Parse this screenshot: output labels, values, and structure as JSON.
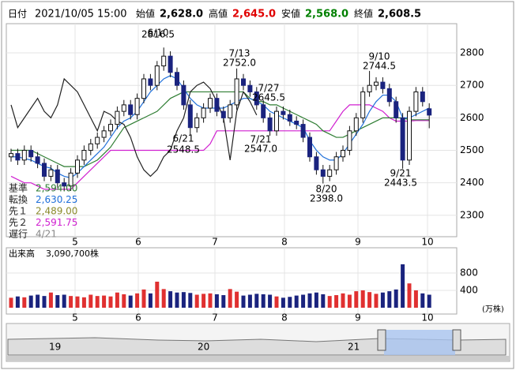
{
  "header": {
    "date_label": "日付",
    "date": "2021/10/05 15:00",
    "open_label": "始値",
    "open": "2,628.0",
    "high_label": "高値",
    "high": "2,645.0",
    "low_label": "安値",
    "low": "2,568.0",
    "close_label": "終値",
    "close": "2,608.5"
  },
  "chart_data": {
    "type": "candlestick",
    "ylim": [
      2234,
      2890
    ],
    "yticks": [
      2300,
      2400,
      2500,
      2600,
      2700,
      2800
    ],
    "month_labels": [
      "5",
      "6",
      "7",
      "8",
      "9",
      "10"
    ],
    "candles": [
      [
        2480,
        2505,
        2465,
        2490
      ],
      [
        2490,
        2505,
        2455,
        2470
      ],
      [
        2470,
        2515,
        2455,
        2500
      ],
      [
        2500,
        2515,
        2465,
        2480
      ],
      [
        2480,
        2495,
        2445,
        2460
      ],
      [
        2460,
        2475,
        2405,
        2420
      ],
      [
        2420,
        2455,
        2405,
        2440
      ],
      [
        2440,
        2455,
        2385,
        2400
      ],
      [
        2400,
        2415,
        2375,
        2390
      ],
      [
        2390,
        2445,
        2375,
        2430
      ],
      [
        2430,
        2485,
        2415,
        2470
      ],
      [
        2470,
        2515,
        2455,
        2500
      ],
      [
        2500,
        2535,
        2485,
        2520
      ],
      [
        2520,
        2555,
        2505,
        2540
      ],
      [
        2540,
        2575,
        2525,
        2560
      ],
      [
        2560,
        2595,
        2545,
        2580
      ],
      [
        2580,
        2635,
        2565,
        2620
      ],
      [
        2620,
        2655,
        2605,
        2640
      ],
      [
        2640,
        2655,
        2595,
        2610
      ],
      [
        2610,
        2675,
        2595,
        2660
      ],
      [
        2660,
        2735,
        2645,
        2720
      ],
      [
        2720,
        2735,
        2685,
        2700
      ],
      [
        2700,
        2775,
        2685,
        2760
      ],
      [
        2760,
        2816.5,
        2745,
        2790
      ],
      [
        2790,
        2805,
        2725,
        2740
      ],
      [
        2740,
        2755,
        2685,
        2700
      ],
      [
        2700,
        2715,
        2625,
        2640
      ],
      [
        2640,
        2655,
        2548.5,
        2570
      ],
      [
        2570,
        2615,
        2555,
        2600
      ],
      [
        2600,
        2645,
        2585,
        2630
      ],
      [
        2630,
        2675,
        2615,
        2660
      ],
      [
        2660,
        2675,
        2605,
        2620
      ],
      [
        2620,
        2635,
        2585,
        2600
      ],
      [
        2600,
        2655,
        2585,
        2640
      ],
      [
        2640,
        2752,
        2625,
        2720
      ],
      [
        2720,
        2735,
        2685,
        2700
      ],
      [
        2700,
        2715,
        2665,
        2680
      ],
      [
        2680,
        2695,
        2625,
        2640
      ],
      [
        2640,
        2655,
        2585,
        2600
      ],
      [
        2600,
        2615,
        2545,
        2560
      ],
      [
        2560,
        2635,
        2545,
        2620
      ],
      [
        2620,
        2635,
        2595,
        2610
      ],
      [
        2610,
        2625,
        2575,
        2590
      ],
      [
        2590,
        2605,
        2565,
        2580
      ],
      [
        2580,
        2595,
        2525,
        2540
      ],
      [
        2540,
        2555,
        2465,
        2480
      ],
      [
        2480,
        2495,
        2425,
        2440
      ],
      [
        2440,
        2455,
        2398,
        2420
      ],
      [
        2420,
        2455,
        2405,
        2440
      ],
      [
        2440,
        2495,
        2425,
        2480
      ],
      [
        2480,
        2515,
        2465,
        2500
      ],
      [
        2500,
        2575,
        2485,
        2560
      ],
      [
        2560,
        2615,
        2545,
        2600
      ],
      [
        2600,
        2695,
        2585,
        2680
      ],
      [
        2680,
        2744.5,
        2665,
        2700
      ],
      [
        2700,
        2725,
        2685,
        2710
      ],
      [
        2710,
        2725,
        2675,
        2690
      ],
      [
        2690,
        2705,
        2635,
        2650
      ],
      [
        2650,
        2665,
        2585,
        2600
      ],
      [
        2600,
        2615,
        2443.5,
        2470
      ],
      [
        2470,
        2635,
        2455,
        2620
      ],
      [
        2620,
        2695,
        2605,
        2680
      ],
      [
        2680,
        2695,
        2635,
        2650
      ],
      [
        2628,
        2645,
        2568,
        2608.5
      ]
    ],
    "tenkan": [
      2480,
      2480,
      2475,
      2470,
      2460,
      2450,
      2445,
      2430,
      2420,
      2415,
      2430,
      2450,
      2470,
      2490,
      2510,
      2540,
      2570,
      2590,
      2600,
      2620,
      2650,
      2680,
      2700,
      2720,
      2730,
      2720,
      2690,
      2660,
      2640,
      2630,
      2630,
      2630,
      2630,
      2640,
      2650,
      2660,
      2660,
      2650,
      2640,
      2620,
      2610,
      2600,
      2590,
      2580,
      2570,
      2530,
      2500,
      2480,
      2470,
      2470,
      2490,
      2520,
      2550,
      2580,
      2620,
      2650,
      2670,
      2670,
      2650,
      2600,
      2600,
      2610,
      2620,
      2630.25
    ],
    "kijun": [
      2500,
      2500,
      2500,
      2500,
      2490,
      2480,
      2470,
      2460,
      2450,
      2450,
      2450,
      2450,
      2460,
      2470,
      2490,
      2510,
      2540,
      2570,
      2580,
      2590,
      2600,
      2610,
      2620,
      2640,
      2660,
      2670,
      2680,
      2680,
      2680,
      2680,
      2680,
      2680,
      2680,
      2680,
      2680,
      2680,
      2660,
      2650,
      2650,
      2640,
      2640,
      2630,
      2620,
      2610,
      2600,
      2590,
      2580,
      2560,
      2550,
      2540,
      2540,
      2550,
      2560,
      2570,
      2580,
      2590,
      2600,
      2600,
      2600,
      2600,
      2594,
      2594,
      2594,
      2594
    ],
    "span2": [
      2420,
      2410,
      2400,
      2400,
      2390,
      2380,
      2380,
      2380,
      2380,
      2380,
      2400,
      2420,
      2440,
      2460,
      2480,
      2500,
      2500,
      2500,
      2500,
      2500,
      2500,
      2500,
      2500,
      2500,
      2500,
      2500,
      2500,
      2500,
      2500,
      2500,
      2520,
      2560,
      2560,
      2560,
      2560,
      2560,
      2560,
      2560,
      2560,
      2560,
      2560,
      2560,
      2560,
      2560,
      2560,
      2560,
      2560,
      2560,
      2560,
      2590,
      2620,
      2640,
      2640,
      2640,
      2640,
      2630,
      2620,
      2600,
      2590,
      2590,
      2590,
      2591.75,
      2591.75,
      2591.75
    ],
    "chikou": [
      2640,
      2570,
      2600,
      2630,
      2660,
      2620,
      2600,
      2640,
      2720,
      2700,
      2680,
      2640,
      2600,
      2560,
      2620,
      2610,
      2590,
      2580,
      2540,
      2480,
      2440,
      2420,
      2440,
      2480,
      2500,
      2560,
      2600,
      2680,
      2700,
      2710,
      2690,
      2650,
      2600,
      2470,
      2620,
      2680,
      2650,
      2608.5,
      null,
      null,
      null,
      null,
      null,
      null,
      null,
      null,
      null,
      null,
      null,
      null,
      null,
      null,
      null,
      null,
      null,
      null,
      null,
      null,
      null,
      null,
      null,
      null,
      null,
      null
    ],
    "annotations": [
      {
        "date": "6/10",
        "price": "2816.5"
      },
      {
        "date": "6/21",
        "price": "2548.5"
      },
      {
        "date": "7/13",
        "price": "2752.0"
      },
      {
        "date": "7/27",
        "price": "2645.5"
      },
      {
        "date": "7/21",
        "price": "2547.0"
      },
      {
        "date": "8/20",
        "price": "2398.0"
      },
      {
        "date": "9/10",
        "price": "2744.5"
      },
      {
        "date": "9/21",
        "price": "2443.5"
      }
    ],
    "legend": [
      {
        "name": "基準",
        "value": "2,594.00",
        "color": "#2e7d32"
      },
      {
        "name": "転換",
        "value": "2,630.25",
        "color": "#1e6fd9"
      },
      {
        "name": "先１",
        "value": "2,489.00",
        "color": "#8a8a2a"
      },
      {
        "name": "先２",
        "value": "2,591.75",
        "color": "#d020d0"
      },
      {
        "name": "遅行",
        "value": "4/21",
        "color": "#888888"
      }
    ],
    "volume": {
      "title": "出来高",
      "total": "3,090,700株",
      "unit": "(万株)",
      "ylim": [
        0,
        1345
      ],
      "yticks": [
        400,
        800
      ],
      "values": [
        230,
        260,
        240,
        280,
        300,
        270,
        350,
        290,
        300,
        270,
        260,
        240,
        300,
        270,
        280,
        260,
        350,
        310,
        280,
        330,
        420,
        330,
        600,
        430,
        380,
        350,
        360,
        340,
        300,
        320,
        330,
        310,
        290,
        430,
        370,
        280,
        300,
        320,
        310,
        300,
        260,
        230,
        250,
        280,
        300,
        330,
        350,
        310,
        270,
        290,
        330,
        300,
        380,
        400,
        360,
        320,
        350,
        380,
        420,
        1000,
        560,
        400,
        330,
        300
      ]
    },
    "navigator_labels": [
      "19",
      "20",
      "21"
    ]
  }
}
